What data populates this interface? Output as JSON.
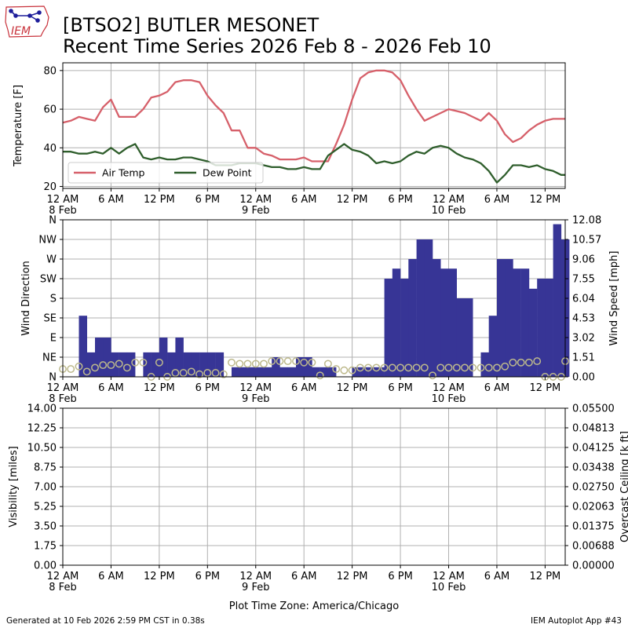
{
  "header": {
    "logo_text": "IEM",
    "title_line1": "[BTSO2] BUTLER MESONET",
    "title_line2": "Recent Time Series 2026 Feb 8 - 2026 Feb 10"
  },
  "footer": {
    "generated": "Generated at 10 Feb 2026 2:59 PM CST in 0.38s",
    "app": "IEM Autoplot App #43",
    "timezone_label": "Plot Time Zone: America/Chicago"
  },
  "x_axis": {
    "ticks": [
      {
        "hour": 0,
        "label": "12 AM",
        "date": "8 Feb"
      },
      {
        "hour": 6,
        "label": "6 AM",
        "date": ""
      },
      {
        "hour": 12,
        "label": "12 PM",
        "date": ""
      },
      {
        "hour": 18,
        "label": "6 PM",
        "date": ""
      },
      {
        "hour": 24,
        "label": "12 AM",
        "date": "9 Feb"
      },
      {
        "hour": 30,
        "label": "6 AM",
        "date": ""
      },
      {
        "hour": 36,
        "label": "12 PM",
        "date": ""
      },
      {
        "hour": 42,
        "label": "6 PM",
        "date": ""
      },
      {
        "hour": 48,
        "label": "12 AM",
        "date": "10 Feb"
      },
      {
        "hour": 54,
        "label": "6 AM",
        "date": ""
      },
      {
        "hour": 60,
        "label": "12 PM",
        "date": ""
      }
    ]
  },
  "colors": {
    "air_temp": "#d6606a",
    "dew_point": "#2f5e2c",
    "wind_bars": "#373596",
    "wind_speed_markers": "#bdb98c",
    "grid": "#b0b0b0",
    "ceiling_label": "#008000"
  },
  "chart_data": [
    {
      "type": "line",
      "ylabel": "Temperature [F]",
      "ylim": [
        19,
        84
      ],
      "yticks": [
        20,
        40,
        60,
        80
      ],
      "xlim": [
        0,
        62.5
      ],
      "grid": true,
      "legend": "lower-left",
      "x_hours": [
        0,
        1,
        2,
        3,
        4,
        5,
        6,
        7,
        8,
        9,
        10,
        11,
        12,
        13,
        14,
        15,
        16,
        17,
        18,
        19,
        20,
        21,
        22,
        23,
        24,
        25,
        26,
        27,
        28,
        29,
        30,
        31,
        32,
        33,
        34,
        35,
        36,
        37,
        38,
        39,
        40,
        41,
        42,
        43,
        44,
        45,
        46,
        47,
        48,
        49,
        50,
        51,
        52,
        53,
        54,
        55,
        56,
        57,
        58,
        59,
        60,
        61,
        62,
        62.5
      ],
      "series": [
        {
          "name": "Air Temp",
          "values": [
            53,
            54,
            56,
            55,
            54,
            61,
            65,
            56,
            56,
            56,
            60,
            66,
            67,
            69,
            74,
            75,
            75,
            74,
            67,
            62,
            58,
            49,
            49,
            40,
            40,
            37,
            36,
            34,
            34,
            34,
            35,
            33,
            33,
            33,
            42,
            52,
            65,
            76,
            79,
            80,
            80,
            79,
            75,
            67,
            60,
            54,
            56,
            58,
            60,
            59,
            58,
            56,
            54,
            58,
            54,
            47,
            43,
            45,
            49,
            52,
            54,
            55,
            55,
            55
          ]
        },
        {
          "name": "Dew Point",
          "values": [
            38,
            38,
            37,
            37,
            38,
            37,
            40,
            37,
            40,
            42,
            35,
            34,
            35,
            34,
            34,
            35,
            35,
            34,
            33,
            31,
            31,
            31,
            32,
            32,
            32,
            31,
            30,
            30,
            29,
            29,
            30,
            29,
            29,
            36,
            39,
            42,
            39,
            38,
            36,
            32,
            33,
            32,
            33,
            36,
            38,
            37,
            40,
            41,
            40,
            37,
            35,
            34,
            32,
            28,
            22,
            26,
            31,
            31,
            30,
            31,
            29,
            28,
            26,
            26
          ]
        }
      ]
    },
    {
      "type": "bar",
      "ylabel": "Wind Direction",
      "ylabel_right": "Wind Speed [mph]",
      "direction_ticks": [
        "N",
        "NE",
        "E",
        "SE",
        "S",
        "SW",
        "W",
        "NW",
        "N"
      ],
      "direction_range_deg": [
        0,
        360
      ],
      "speed_ticks": [
        "0.00",
        "1.51",
        "3.02",
        "4.53",
        "6.04",
        "7.55",
        "9.06",
        "10.57",
        "12.08"
      ],
      "speed_range_mph": [
        0,
        12.08
      ],
      "xlim": [
        0,
        62.5
      ],
      "grid": true,
      "direction_bars": {
        "width_hours": 1,
        "x_hours": [
          0,
          1,
          2,
          3,
          4,
          5,
          6,
          7,
          8,
          9,
          10,
          11,
          12,
          13,
          14,
          15,
          16,
          17,
          18,
          19,
          20,
          21,
          22,
          23,
          24,
          25,
          26,
          27,
          28,
          29,
          30,
          31,
          32,
          33,
          34,
          35,
          36,
          37,
          38,
          39,
          40,
          41,
          42,
          43,
          44,
          45,
          46,
          47,
          48,
          49,
          50,
          51,
          52,
          53,
          54,
          55,
          56,
          57,
          58,
          59,
          60,
          61,
          62
        ],
        "values_deg": [
          0,
          0,
          140,
          56,
          90,
          90,
          56,
          56,
          56,
          0,
          56,
          56,
          90,
          56,
          90,
          56,
          56,
          56,
          56,
          56,
          0,
          0,
          0,
          0,
          0,
          0,
          0,
          0,
          0,
          0,
          0,
          0,
          0,
          0,
          0,
          0,
          225,
          0,
          0,
          0,
          0,
          0,
          0,
          0,
          0,
          0,
          0,
          0,
          0,
          0,
          0,
          0,
          0,
          0,
          0,
          0,
          0,
          0,
          0,
          0,
          0,
          0,
          0
        ],
        "overrides": [
          {
            "start": 20,
            "values_deg": [
              0,
              22,
              22,
              22,
              22,
              22,
              45,
              22,
              22,
              45,
              45,
              22,
              22,
              22,
              0,
              0,
              22,
              22,
              22,
              22,
              225,
              248,
              225,
              270,
              315,
              315,
              270,
              248,
              248,
              180,
              180,
              0,
              56,
              140,
              270,
              270,
              248,
              248,
              202,
              225,
              225,
              350,
              315,
              315,
              338,
              338,
              338,
              270,
              270
            ]
          }
        ]
      },
      "wind_speed_mph": [
        0.6,
        0.6,
        0.8,
        0.4,
        0.7,
        0.9,
        0.9,
        1.0,
        0.7,
        1.1,
        1.1,
        0,
        1.1,
        0,
        0.3,
        0.3,
        0.4,
        0.2,
        0.3,
        0.3,
        0.2,
        1.1,
        1.0,
        1.0,
        1.0,
        1.0,
        1.2,
        1.2,
        1.2,
        1.2,
        1.1,
        1.1,
        0.1,
        1.0,
        0.6,
        0.5,
        0.5,
        0.7,
        0.7,
        0.7,
        0.7,
        0.7,
        0.7,
        0.7,
        0.7,
        0.7,
        0.1,
        0.7,
        0.7,
        0.7,
        0.7,
        0.7,
        0.7,
        0.7,
        0.7,
        0.8,
        1.1,
        1.1,
        1.1,
        1.2,
        0,
        0,
        0,
        1.2
      ]
    },
    {
      "type": "line",
      "ylabel": "Visibility [miles]",
      "ylabel_right": "Overcast Ceiling [k ft]",
      "visibility_ticks": [
        "0.00",
        "1.75",
        "3.50",
        "5.25",
        "7.00",
        "8.75",
        "10.50",
        "12.25",
        "14.00"
      ],
      "ceiling_ticks": [
        "0.00000",
        "0.00688",
        "0.01375",
        "0.02063",
        "0.02750",
        "0.03438",
        "0.04125",
        "0.04813",
        "0.05500"
      ],
      "visibility_range": [
        0,
        14
      ],
      "ceiling_range": [
        0,
        0.055
      ],
      "xlim": [
        0,
        62.5
      ],
      "grid": true,
      "series": []
    }
  ]
}
